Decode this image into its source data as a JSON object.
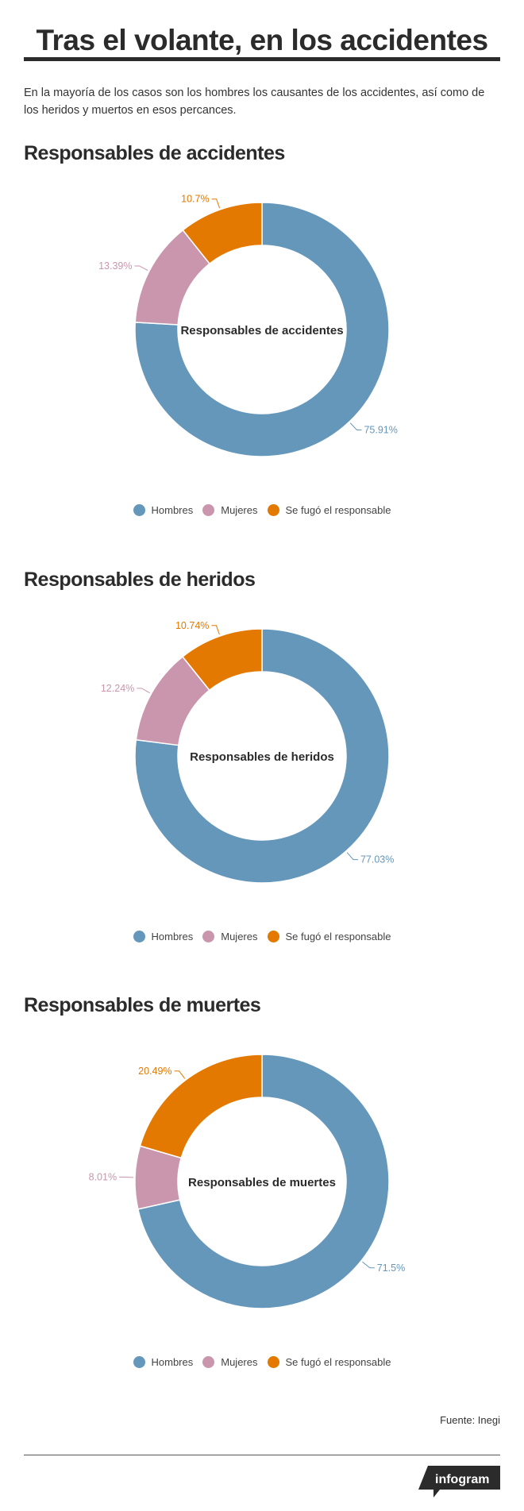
{
  "header": {
    "title": "Tras el volante, en los accidentes",
    "description": "En la mayoría de los casos son los hombres los causantes de los accidentes, así como de los heridos y muertos en esos percances."
  },
  "legend": {
    "items": [
      {
        "label": "Hombres",
        "color": "#6597bb"
      },
      {
        "label": "Mujeres",
        "color": "#c996ae"
      },
      {
        "label": "Se fugó el responsable",
        "color": "#e37900"
      }
    ]
  },
  "chart_data": [
    {
      "type": "pie",
      "title": "Responsables de accidentes",
      "center_label": "Responsables de accidentes",
      "categories": [
        "Hombres",
        "Mujeres",
        "Se fugó el responsable"
      ],
      "values": [
        75.91,
        13.39,
        10.7
      ],
      "value_labels": [
        "75.91%",
        "13.39%",
        "10.7%"
      ],
      "colors": [
        "#6597bb",
        "#c996ae",
        "#e37900"
      ],
      "legend_position": "bottom"
    },
    {
      "type": "pie",
      "title": "Responsables de heridos",
      "center_label": "Responsables de heridos",
      "categories": [
        "Hombres",
        "Mujeres",
        "Se fugó el responsable"
      ],
      "values": [
        77.03,
        12.24,
        10.74
      ],
      "value_labels": [
        "77.03%",
        "12.24%",
        "10.74%"
      ],
      "colors": [
        "#6597bb",
        "#c996ae",
        "#e37900"
      ],
      "legend_position": "bottom"
    },
    {
      "type": "pie",
      "title": "Responsables de muertes",
      "center_label": "Responsables de muertes",
      "categories": [
        "Hombres",
        "Mujeres",
        "Se fugó el responsable"
      ],
      "values": [
        71.5,
        8.01,
        20.49
      ],
      "value_labels": [
        "71.5%",
        "8.01%",
        "20.49%"
      ],
      "colors": [
        "#6597bb",
        "#c996ae",
        "#e37900"
      ],
      "legend_position": "bottom"
    }
  ],
  "footer": {
    "source": "Fuente: Inegi",
    "brand": "infogram"
  }
}
